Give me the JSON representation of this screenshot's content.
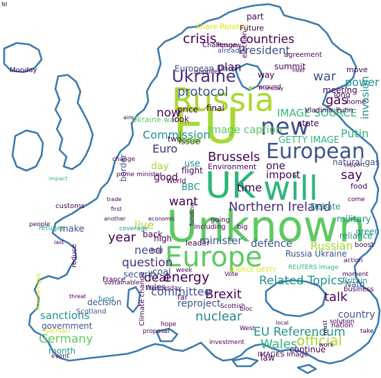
{
  "colors": {
    "outline": "#3b7aad",
    "background": "#ffffff",
    "palette": {
      "lime": "#a8d832",
      "green": "#5ec962",
      "teal": "#21918c",
      "blue": "#3b528b",
      "purple": "#472d7b",
      "dark": "#440154",
      "mint": "#2fb47c",
      "cyan": "#26828e",
      "yellow": "#dde318"
    }
  },
  "words": [
    {
      "text": "Unknown",
      "color": "green"
    },
    {
      "text": "EU",
      "color": "lime"
    },
    {
      "text": "Europe",
      "color": "green"
    },
    {
      "text": "Russia",
      "color": "lime"
    },
    {
      "text": "will",
      "color": "mint"
    },
    {
      "text": "UK",
      "color": "mint"
    },
    {
      "text": "European",
      "color": "blue"
    },
    {
      "text": "new",
      "color": "blue"
    },
    {
      "text": "Ukraine",
      "color": "purple"
    },
    {
      "text": "Northern Ireland",
      "color": "purple"
    },
    {
      "text": "Brexit",
      "color": "dark"
    },
    {
      "text": "energy",
      "color": "dark"
    },
    {
      "text": "committee",
      "color": "blue"
    },
    {
      "text": "sanctions",
      "color": "teal"
    },
    {
      "text": "Germany",
      "color": "green"
    },
    {
      "text": "official",
      "color": "lime"
    },
    {
      "text": "Wales",
      "color": "mint"
    },
    {
      "text": "EU Referendum",
      "color": "teal"
    },
    {
      "text": "nuclear",
      "color": "cyan"
    },
    {
      "text": "talk",
      "color": "dark"
    },
    {
      "text": "Related Topics",
      "color": "teal"
    },
    {
      "text": "Russian",
      "color": "lime"
    },
    {
      "text": "minister",
      "color": "blue"
    },
    {
      "text": "defence",
      "color": "blue"
    },
    {
      "text": "question",
      "color": "purple"
    },
    {
      "text": "deal",
      "color": "dark"
    },
    {
      "text": "year",
      "color": "dark"
    },
    {
      "text": "live",
      "color": "lime"
    },
    {
      "text": "need",
      "color": "blue"
    },
    {
      "text": "want",
      "color": "dark"
    },
    {
      "text": "time",
      "color": "dark"
    },
    {
      "text": "one",
      "color": "dark"
    },
    {
      "text": "import",
      "color": "dark"
    },
    {
      "text": "Brussels",
      "color": "dark"
    },
    {
      "text": "Commission",
      "color": "teal"
    },
    {
      "text": "Image caption",
      "color": "green"
    },
    {
      "text": "IMAGE SOURCE",
      "color": "mint"
    },
    {
      "text": "Putin",
      "color": "mint"
    },
    {
      "text": "invasion",
      "color": "teal"
    },
    {
      "text": "gas",
      "color": "dark"
    },
    {
      "text": "war",
      "color": "blue"
    },
    {
      "text": "plan",
      "color": "dark"
    },
    {
      "text": "President",
      "color": "blue"
    },
    {
      "text": "countries",
      "color": "dark"
    },
    {
      "text": "crisis",
      "color": "dark"
    },
    {
      "text": "protocol",
      "color": "blue"
    },
    {
      "text": "now",
      "color": "dark"
    },
    {
      "text": "Euro",
      "color": "purple"
    },
    {
      "text": "good",
      "color": "dark"
    },
    {
      "text": "day",
      "color": "lime"
    },
    {
      "text": "use",
      "color": "teal"
    },
    {
      "text": "BBC",
      "color": "teal"
    },
    {
      "text": "say",
      "color": "dark"
    },
    {
      "text": "power",
      "color": "teal"
    },
    {
      "text": "Nato",
      "color": "blue"
    },
    {
      "text": "government",
      "color": "blue"
    },
    {
      "text": "month",
      "color": "teal"
    },
    {
      "text": "reproject",
      "color": "blue"
    },
    {
      "text": "security",
      "color": "blue"
    },
    {
      "text": "European Union",
      "color": "blue"
    },
    {
      "text": "Ukraine war",
      "color": "green"
    },
    {
      "text": "Russia Ukraine",
      "color": "blue"
    },
    {
      "text": "military",
      "color": "teal"
    },
    {
      "text": "reliance",
      "color": "teal"
    },
    {
      "text": "natural gas",
      "color": "blue"
    },
    {
      "text": "GETTY IMAGE",
      "color": "mint"
    },
    {
      "text": "Debate",
      "color": "teal"
    },
    {
      "text": "border",
      "color": "blue"
    },
    {
      "text": "issue",
      "color": "blue"
    },
    {
      "text": "price",
      "color": "dark"
    },
    {
      "text": "meeting",
      "color": "dark"
    },
    {
      "text": "final",
      "color": "dark"
    },
    {
      "text": "country",
      "color": "blue"
    },
    {
      "text": "make",
      "color": "blue"
    },
    {
      "text": "coal",
      "color": "blue"
    },
    {
      "text": "rules",
      "color": "blue"
    },
    {
      "text": "Britain",
      "color": "teal"
    },
    {
      "text": "business",
      "color": "dark"
    },
    {
      "text": "continue",
      "color": "dark"
    },
    {
      "text": "law",
      "color": "dark"
    },
    {
      "text": "decision",
      "color": "blue"
    },
    {
      "text": "Scotland",
      "color": "blue"
    },
    {
      "text": "leader",
      "color": "dark"
    },
    {
      "text": "back",
      "color": "dark"
    },
    {
      "text": "high",
      "color": "dark"
    },
    {
      "text": "flight",
      "color": "dark"
    },
    {
      "text": "look",
      "color": "dark"
    },
    {
      "text": "Environment",
      "color": "dark"
    },
    {
      "text": "summit",
      "color": "dark"
    },
    {
      "text": "Share Related",
      "color": "yellow"
    },
    {
      "text": "part",
      "color": "dark"
    },
    {
      "text": "Future",
      "color": "dark"
    },
    {
      "text": "way",
      "color": "dark"
    },
    {
      "text": "two",
      "color": "dark"
    },
    {
      "text": "green",
      "color": "teal"
    },
    {
      "text": "boost",
      "color": "dark"
    },
    {
      "text": "move",
      "color": "dark"
    },
    {
      "text": "home",
      "color": "dark"
    },
    {
      "text": "Vladimir Putin",
      "color": "dark"
    },
    {
      "text": "state",
      "color": "dark"
    },
    {
      "text": "long",
      "color": "dark"
    },
    {
      "text": "World",
      "color": "dark"
    },
    {
      "text": "including",
      "color": "dark"
    },
    {
      "text": "going",
      "color": "dark"
    },
    {
      "text": "big",
      "color": "dark"
    },
    {
      "text": "nation",
      "color": "dark"
    },
    {
      "text": "take",
      "color": "dark"
    },
    {
      "text": "food",
      "color": "dark"
    },
    {
      "text": "far",
      "color": "dark"
    },
    {
      "text": "already",
      "color": "blue"
    },
    {
      "text": "Moscow",
      "color": "dark"
    },
    {
      "text": "Monday",
      "color": "dark"
    },
    {
      "text": "impact",
      "color": "mint"
    },
    {
      "text": "customs",
      "color": "dark"
    },
    {
      "text": "people",
      "color": "dark"
    },
    {
      "text": "refugee",
      "color": "mint"
    },
    {
      "text": "fund",
      "color": "teal"
    },
    {
      "text": "sustainable",
      "color": "dark"
    },
    {
      "text": "Climate change",
      "color": "dark"
    },
    {
      "text": "coverage",
      "color": "teal"
    },
    {
      "text": "Vote",
      "color": "dark"
    },
    {
      "text": "bloc",
      "color": "dark"
    },
    {
      "text": "West",
      "color": "dark"
    },
    {
      "text": "told",
      "color": "dark"
    },
    {
      "text": "week",
      "color": "dark"
    },
    {
      "text": "SOURCE GETTY",
      "color": "yellow"
    },
    {
      "text": "REUTERS Image",
      "color": "mint"
    },
    {
      "text": "IMAGES Image",
      "color": "dark"
    },
    {
      "text": "prime minister",
      "color": "dark"
    },
    {
      "text": "next",
      "color": "dark"
    },
    {
      "text": "agreement",
      "color": "dark"
    },
    {
      "text": "around",
      "color": "dark"
    },
    {
      "text": "supplies",
      "color": "dark"
    },
    {
      "text": "election",
      "color": "dark"
    },
    {
      "text": "Challenge",
      "color": "dark"
    },
    {
      "text": "German",
      "color": "yellow"
    },
    {
      "text": "Russian gas",
      "color": "yellow"
    },
    {
      "text": "threat",
      "color": "dark"
    },
    {
      "text": "reduce",
      "color": "dark"
    },
    {
      "text": "France",
      "color": "dark"
    },
    {
      "text": "moment",
      "color": "dark"
    },
    {
      "text": "action",
      "color": "dark"
    },
    {
      "text": "support",
      "color": "dark"
    },
    {
      "text": "solution",
      "color": "dark"
    },
    {
      "text": "local",
      "color": "dark"
    },
    {
      "text": "event",
      "color": "dark"
    },
    {
      "text": "Wednesday",
      "color": "dark"
    },
    {
      "text": "Thursday",
      "color": "dark"
    },
    {
      "text": "investment",
      "color": "dark"
    },
    {
      "text": "hope",
      "color": "dark"
    },
    {
      "text": "work",
      "color": "dark"
    },
    {
      "text": "aim",
      "color": "dark"
    },
    {
      "text": "change",
      "color": "dark"
    },
    {
      "text": "funding",
      "color": "dark"
    },
    {
      "text": "proposal",
      "color": "dark"
    },
    {
      "text": "Scottish",
      "color": "dark"
    },
    {
      "text": "economic",
      "color": "dark"
    },
    {
      "text": "another",
      "color": "dark"
    },
    {
      "text": "first",
      "color": "dark"
    },
    {
      "text": "last",
      "color": "dark"
    },
    {
      "text": "must",
      "color": "dark"
    },
    {
      "text": "trade",
      "color": "dark"
    },
    {
      "text": "come",
      "color": "dark"
    },
    {
      "text": "NI",
      "color": "dark"
    }
  ]
}
